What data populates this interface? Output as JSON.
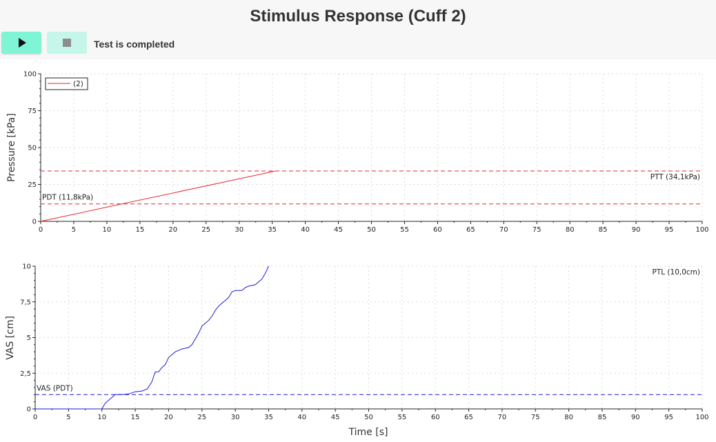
{
  "header": {
    "title": "Stimulus Response (Cuff 2)",
    "status_text": "Test is completed"
  },
  "toolbar": {
    "play_icon": "play-icon",
    "stop_icon": "stop-icon"
  },
  "chart_data": [
    {
      "type": "line",
      "ylabel": "Pressure [kPa]",
      "xlabel": "",
      "xlim": [
        0,
        100
      ],
      "ylim": [
        0,
        100
      ],
      "x_ticks": [
        "0",
        "5",
        "10",
        "15",
        "20",
        "25",
        "30",
        "35",
        "40",
        "45",
        "50",
        "55",
        "60",
        "65",
        "70",
        "75",
        "80",
        "85",
        "90",
        "95",
        "100"
      ],
      "y_ticks": [
        "0",
        "25",
        "50",
        "75",
        "100"
      ],
      "grid": true,
      "legend": {
        "position": "top-left",
        "entries": [
          "(2)"
        ]
      },
      "series": [
        {
          "name": "(2)",
          "color": "#e8262e",
          "style": "solid",
          "points": [
            [
              0,
              0
            ],
            [
              35.5,
              34.1
            ]
          ]
        }
      ],
      "reference_lines": [
        {
          "label": "PTT (34,1kPa)",
          "y": 34.1,
          "color": "#e8262e",
          "style": "dashed",
          "label_position": "right"
        },
        {
          "label": "PDT (11,8kPa)",
          "y": 11.8,
          "color": "#e8262e",
          "style": "dashed",
          "label_position": "left"
        }
      ]
    },
    {
      "type": "line",
      "ylabel": "VAS [cm]",
      "xlabel": "Time [s]",
      "xlim": [
        0,
        100
      ],
      "ylim": [
        0,
        10
      ],
      "x_ticks": [
        "0",
        "5",
        "10",
        "15",
        "20",
        "25",
        "30",
        "35",
        "40",
        "45",
        "50",
        "55",
        "60",
        "65",
        "70",
        "75",
        "80",
        "85",
        "90",
        "95",
        "100"
      ],
      "y_ticks": [
        "0",
        "2,5",
        "5",
        "7,5",
        "10"
      ],
      "grid": true,
      "annotations": [
        {
          "text": "PTL (10,0cm)",
          "position": "top-right"
        }
      ],
      "series": [
        {
          "color": "#1a1adb",
          "style": "solid",
          "points": [
            [
              0,
              0
            ],
            [
              10,
              0
            ],
            [
              10.5,
              0.4
            ],
            [
              11,
              0.6
            ],
            [
              11.5,
              0.8
            ],
            [
              12,
              1.0
            ],
            [
              13,
              1.0
            ],
            [
              14,
              1.05
            ],
            [
              15,
              1.2
            ],
            [
              16,
              1.25
            ],
            [
              16.8,
              1.4
            ],
            [
              17.5,
              1.9
            ],
            [
              18,
              2.6
            ],
            [
              18.5,
              2.6
            ],
            [
              19,
              2.9
            ],
            [
              19.5,
              3.1
            ],
            [
              20,
              3.6
            ],
            [
              20.5,
              3.8
            ],
            [
              21,
              4.0
            ],
            [
              22,
              4.2
            ],
            [
              23,
              4.3
            ],
            [
              23.5,
              4.5
            ],
            [
              24,
              4.9
            ],
            [
              24.5,
              5.3
            ],
            [
              25,
              5.8
            ],
            [
              25.5,
              6.0
            ],
            [
              26,
              6.2
            ],
            [
              26.5,
              6.5
            ],
            [
              27,
              6.9
            ],
            [
              27.5,
              7.2
            ],
            [
              28,
              7.4
            ],
            [
              28.5,
              7.6
            ],
            [
              29,
              7.8
            ],
            [
              29.5,
              8.2
            ],
            [
              30,
              8.3
            ],
            [
              31,
              8.3
            ],
            [
              31.5,
              8.5
            ],
            [
              32,
              8.6
            ],
            [
              33,
              8.7
            ],
            [
              34,
              9.1
            ],
            [
              34.5,
              9.5
            ],
            [
              35,
              10.0
            ]
          ]
        }
      ],
      "reference_lines": [
        {
          "label": "VAS (PDT)",
          "y": 1.0,
          "color": "#1a1adb",
          "style": "dashed",
          "label_position": "left"
        }
      ]
    }
  ]
}
